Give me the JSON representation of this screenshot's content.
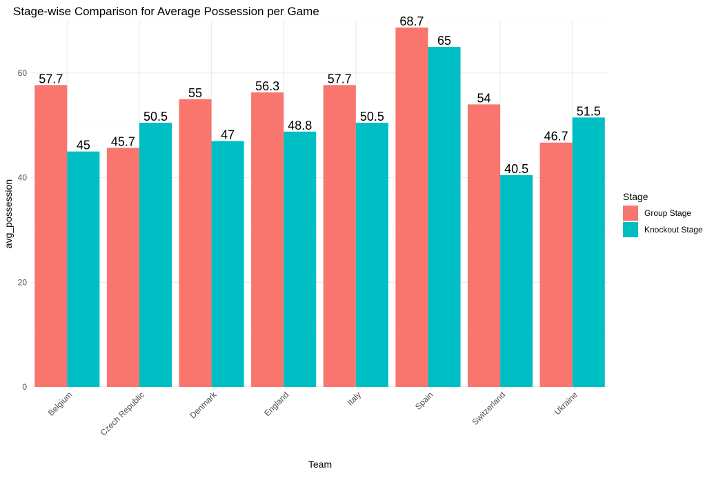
{
  "chart_data": {
    "type": "bar",
    "title": "Stage-wise Comparison for Average Possession per Game",
    "xlabel": "Team",
    "ylabel": "avg_possession",
    "categories": [
      "Belgium",
      "Czech Republic",
      "Denmark",
      "England",
      "Italy",
      "Spain",
      "Switzerland",
      "Ukraine"
    ],
    "series": [
      {
        "name": "Group Stage",
        "color": "#F8766D",
        "values": [
          57.7,
          45.7,
          55,
          56.3,
          57.7,
          68.7,
          54,
          46.7
        ],
        "labels": [
          "57.7",
          "45.7",
          "55",
          "56.3",
          "57.7",
          "68.7",
          "54",
          "46.7"
        ]
      },
      {
        "name": "Knockout Stage",
        "color": "#00BFC4",
        "values": [
          45,
          50.5,
          47,
          48.8,
          50.5,
          65,
          40.5,
          51.5
        ],
        "labels": [
          "45",
          "50.5",
          "47",
          "48.8",
          "50.5",
          "65",
          "40.5",
          "51.5"
        ]
      }
    ],
    "ylim": [
      0,
      70
    ],
    "yticks": [
      0,
      20,
      40,
      60
    ],
    "yticklabels": [
      "0",
      "20",
      "40",
      "60"
    ],
    "legend": {
      "title": "Stage",
      "position": "right"
    },
    "grid": true,
    "x_tick_rotation": 45
  }
}
